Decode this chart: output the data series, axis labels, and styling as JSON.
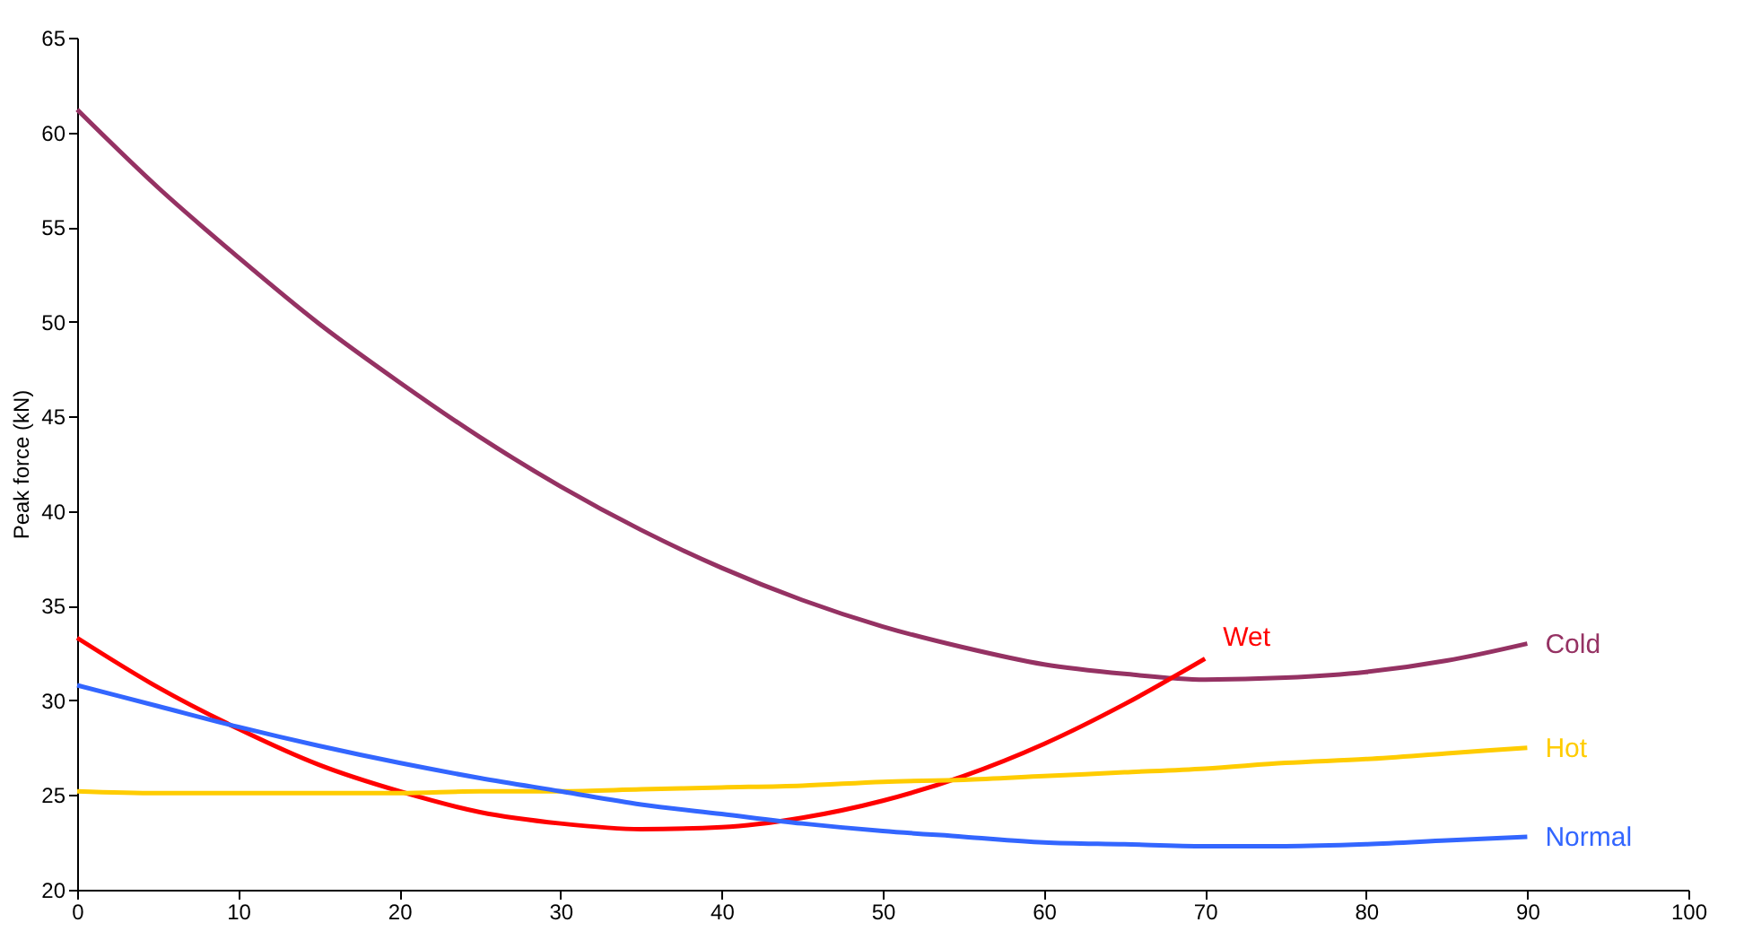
{
  "chart_data": {
    "type": "line",
    "ylabel": "Peak force (kN)",
    "xlim": [
      0,
      100
    ],
    "xticks": [
      0,
      10,
      20,
      30,
      40,
      50,
      60,
      70,
      80,
      90,
      100
    ],
    "ylim": [
      20,
      65
    ],
    "yticks": [
      20,
      25,
      30,
      35,
      40,
      45,
      50,
      55,
      60,
      65
    ],
    "grid": false,
    "legend": false,
    "marker": "none",
    "line_style": "solid",
    "series": [
      {
        "name": "Cold",
        "color": "#953263",
        "x": [
          0,
          5,
          10,
          15,
          20,
          25,
          30,
          35,
          40,
          45,
          50,
          55,
          60,
          65,
          70,
          75,
          80,
          85,
          90
        ],
        "values": [
          61.2,
          57.1,
          53.4,
          49.9,
          46.8,
          43.9,
          41.3,
          39.0,
          37.0,
          35.3,
          33.9,
          32.8,
          31.9,
          31.4,
          31.1,
          31.2,
          31.5,
          32.1,
          33.0
        ]
      },
      {
        "name": "Wet",
        "color": "#ff0000",
        "x": [
          0,
          5,
          10,
          15,
          20,
          25,
          30,
          35,
          40,
          45,
          50,
          55,
          60,
          65,
          70
        ],
        "values": [
          33.3,
          30.7,
          28.5,
          26.6,
          25.2,
          24.1,
          23.5,
          23.2,
          23.3,
          23.8,
          24.7,
          26.0,
          27.7,
          29.8,
          32.2
        ]
      },
      {
        "name": "Hot",
        "color": "#ffcc00",
        "x": [
          0,
          5,
          10,
          15,
          20,
          25,
          30,
          35,
          40,
          45,
          50,
          55,
          60,
          65,
          70,
          75,
          80,
          85,
          90
        ],
        "values": [
          25.2,
          25.1,
          25.1,
          25.1,
          25.1,
          25.2,
          25.2,
          25.3,
          25.4,
          25.5,
          25.7,
          25.8,
          26.0,
          26.2,
          26.4,
          26.7,
          26.9,
          27.2,
          27.5
        ]
      },
      {
        "name": "Normal",
        "color": "#3366ff",
        "x": [
          0,
          5,
          10,
          15,
          20,
          25,
          30,
          35,
          40,
          45,
          50,
          55,
          60,
          65,
          70,
          75,
          80,
          85,
          90
        ],
        "values": [
          30.8,
          29.7,
          28.6,
          27.6,
          26.7,
          25.9,
          25.2,
          24.5,
          24.0,
          23.5,
          23.1,
          22.8,
          22.5,
          22.4,
          22.3,
          22.3,
          22.4,
          22.6,
          22.8
        ]
      }
    ]
  }
}
